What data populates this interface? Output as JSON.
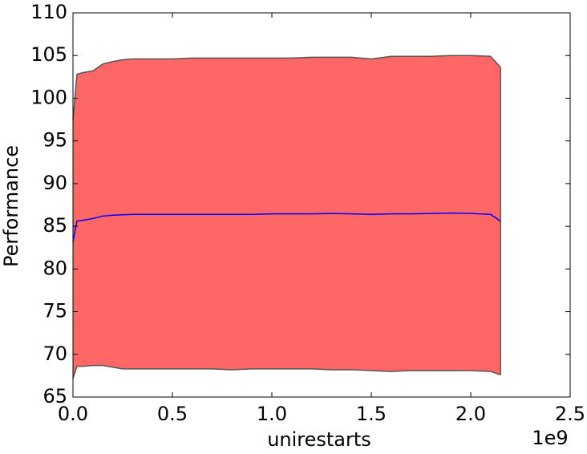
{
  "chart_data": {
    "type": "band-line",
    "x_label": "unirestarts",
    "y_label": "Performance",
    "x_offset_label": "1e9",
    "x": [
      0,
      0.02,
      0.05,
      0.1,
      0.15,
      0.2,
      0.25,
      0.3,
      0.4,
      0.5,
      0.6,
      0.7,
      0.8,
      0.9,
      1.0,
      1.1,
      1.2,
      1.3,
      1.4,
      1.5,
      1.6,
      1.7,
      1.8,
      1.9,
      2.0,
      2.1,
      2.15
    ],
    "values": [
      83.2,
      85.6,
      85.7,
      85.9,
      86.2,
      86.3,
      86.35,
      86.4,
      86.4,
      86.4,
      86.4,
      86.4,
      86.4,
      86.4,
      86.45,
      86.45,
      86.45,
      86.5,
      86.45,
      86.4,
      86.45,
      86.45,
      86.5,
      86.55,
      86.5,
      86.4,
      85.6
    ],
    "upper": [
      97.4,
      102.8,
      103.0,
      103.2,
      104.0,
      104.3,
      104.5,
      104.6,
      104.6,
      104.6,
      104.7,
      104.7,
      104.7,
      104.7,
      104.7,
      104.7,
      104.8,
      104.8,
      104.8,
      104.6,
      104.9,
      104.9,
      104.9,
      105.0,
      105.0,
      104.9,
      103.6
    ],
    "lower": [
      67.2,
      68.6,
      68.6,
      68.7,
      68.7,
      68.5,
      68.3,
      68.3,
      68.3,
      68.3,
      68.3,
      68.3,
      68.2,
      68.3,
      68.3,
      68.3,
      68.3,
      68.2,
      68.2,
      68.1,
      68.0,
      68.1,
      68.1,
      68.1,
      68.1,
      68.0,
      67.6
    ],
    "line_color": "#0000ff",
    "fill_color": "#ff6666",
    "edge_color": "#555555",
    "xlim": [
      0,
      2.5
    ],
    "ylim": [
      65,
      110
    ],
    "xticks": [
      {
        "value": 0,
        "label": "0.0"
      },
      0.5,
      {
        "value": 1,
        "label": "1.0"
      },
      1.5,
      {
        "value": 2,
        "label": "2.0"
      },
      2.5
    ],
    "yticks": [
      65,
      70,
      75,
      80,
      85,
      90,
      95,
      100,
      105,
      110
    ]
  }
}
